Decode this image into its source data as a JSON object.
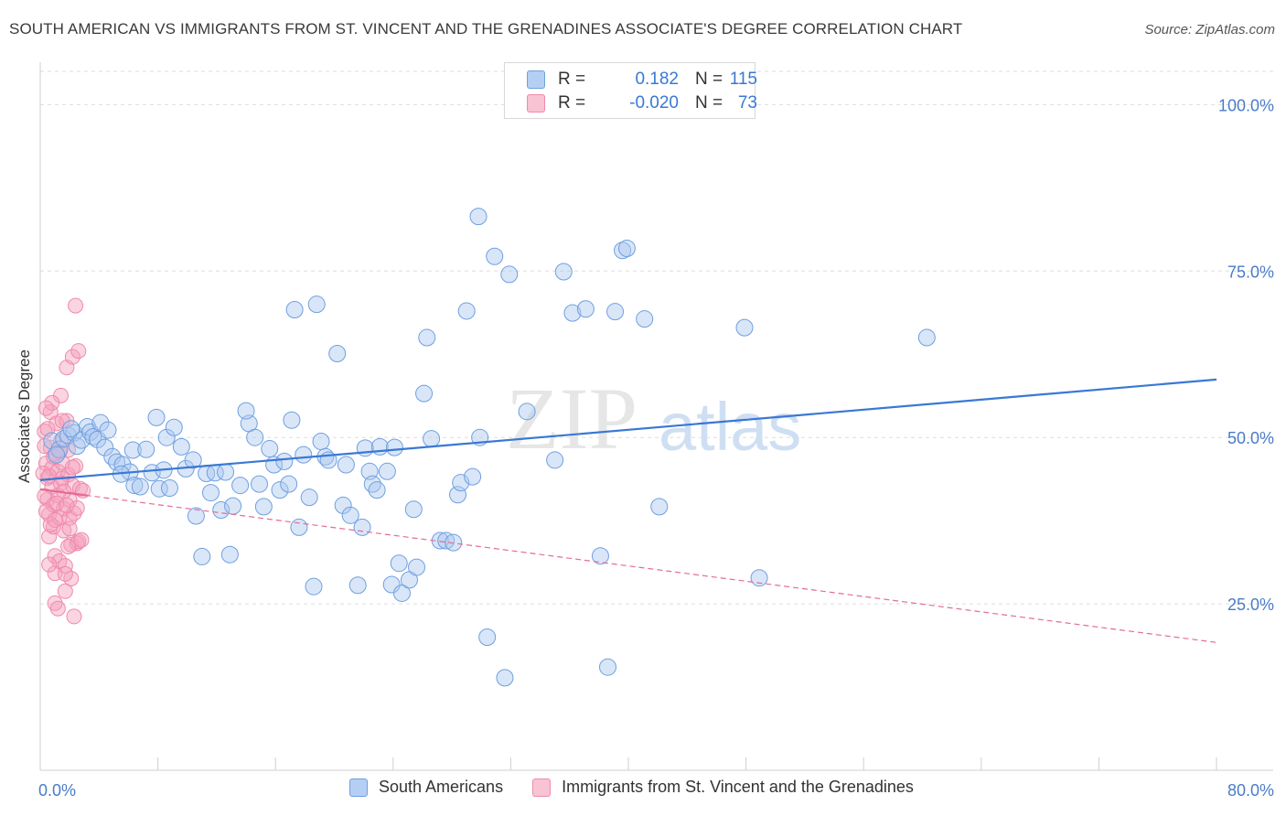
{
  "header": {
    "title": "SOUTH AMERICAN VS IMMIGRANTS FROM ST. VINCENT AND THE GRENADINES ASSOCIATE'S DEGREE CORRELATION CHART",
    "source": "Source: ZipAtlas.com"
  },
  "watermark": {
    "zip": "ZIP",
    "atlas": "atlas"
  },
  "stats": [
    {
      "r_label": "R =",
      "r_value": "0.182",
      "n_label": "N =",
      "n_value": "115",
      "color": "#6f9fe0"
    },
    {
      "r_label": "R =",
      "r_value": "-0.020",
      "n_label": "N =",
      "n_value": "73",
      "color": "#f08aaa"
    }
  ],
  "legend": [
    {
      "label": "South Americans",
      "fill": "#b4cff3",
      "stroke": "#6f9fe0"
    },
    {
      "label": "Immigrants from St. Vincent and the Grenadines",
      "fill": "#f8c3d3",
      "stroke": "#f08aaa"
    }
  ],
  "colors": {
    "blue": "#5b8fdb",
    "blue_line": "#3a78d4",
    "pink": "#f08aaa",
    "pink_line": "#e56b93",
    "tick_label": "#4a7cc7",
    "grid": "#dddddd"
  },
  "chart_data": {
    "type": "scatter",
    "title": "SOUTH AMERICAN VS IMMIGRANTS FROM ST. VINCENT AND THE GRENADINES ASSOCIATE'S DEGREE CORRELATION CHART",
    "xlabel": "",
    "ylabel": "Associate's Degree",
    "xlim": [
      0,
      80
    ],
    "ylim": [
      0,
      105
    ],
    "x_tick_labels": [
      {
        "value": 0,
        "label": "0.0%"
      },
      {
        "value": 80,
        "label": "80.0%"
      }
    ],
    "y_tick_labels": [
      {
        "value": 25,
        "label": "25.0%"
      },
      {
        "value": 50,
        "label": "50.0%"
      },
      {
        "value": 75,
        "label": "75.0%"
      },
      {
        "value": 100,
        "label": "100.0%"
      }
    ],
    "x_minor_ticks": [
      0,
      8,
      16,
      24,
      32,
      40,
      48,
      56,
      64,
      72,
      80
    ],
    "grid": true,
    "series": [
      {
        "name": "South Americans",
        "color": "#6f9fe0",
        "trend": {
          "x": [
            0,
            80
          ],
          "y": [
            43.6,
            58.7
          ]
        },
        "points": [
          [
            0.8,
            49.5
          ],
          [
            1.3,
            48.2
          ],
          [
            1.6,
            49.8
          ],
          [
            1.9,
            50.3
          ],
          [
            2.3,
            50.7
          ],
          [
            2.5,
            48.7
          ],
          [
            2.8,
            49.6
          ],
          [
            3.2,
            51.6
          ],
          [
            3.4,
            50.8
          ],
          [
            3.6,
            50.1
          ],
          [
            3.9,
            49.7
          ],
          [
            4.1,
            52.2
          ],
          [
            4.4,
            48.5
          ],
          [
            4.6,
            51.1
          ],
          [
            4.9,
            47.1
          ],
          [
            5.2,
            46.3
          ],
          [
            5.6,
            45.9
          ],
          [
            6.1,
            44.8
          ],
          [
            6.3,
            48.1
          ],
          [
            6.4,
            42.8
          ],
          [
            6.8,
            42.6
          ],
          [
            7.2,
            48.2
          ],
          [
            7.6,
            44.7
          ],
          [
            7.9,
            53.0
          ],
          [
            8.1,
            42.3
          ],
          [
            8.6,
            50.0
          ],
          [
            8.8,
            42.4
          ],
          [
            9.1,
            51.5
          ],
          [
            9.6,
            48.6
          ],
          [
            9.9,
            45.3
          ],
          [
            10.4,
            46.6
          ],
          [
            10.6,
            38.2
          ],
          [
            11.0,
            32.1
          ],
          [
            11.3,
            44.6
          ],
          [
            11.6,
            41.7
          ],
          [
            11.9,
            44.7
          ],
          [
            12.3,
            39.1
          ],
          [
            12.6,
            44.8
          ],
          [
            12.9,
            32.4
          ],
          [
            13.1,
            39.7
          ],
          [
            13.6,
            42.8
          ],
          [
            14.2,
            52.1
          ],
          [
            14.6,
            50.0
          ],
          [
            14.9,
            43.0
          ],
          [
            15.2,
            39.6
          ],
          [
            15.6,
            48.3
          ],
          [
            15.9,
            45.9
          ],
          [
            16.3,
            42.1
          ],
          [
            16.6,
            46.4
          ],
          [
            16.9,
            43.0
          ],
          [
            17.1,
            52.6
          ],
          [
            17.6,
            36.5
          ],
          [
            17.9,
            47.4
          ],
          [
            18.3,
            41.0
          ],
          [
            18.6,
            27.6
          ],
          [
            19.1,
            49.4
          ],
          [
            19.4,
            47.1
          ],
          [
            19.6,
            46.6
          ],
          [
            20.2,
            62.6
          ],
          [
            20.6,
            39.8
          ],
          [
            20.8,
            45.9
          ],
          [
            21.1,
            38.3
          ],
          [
            21.6,
            27.8
          ],
          [
            21.9,
            36.5
          ],
          [
            22.1,
            48.4
          ],
          [
            22.4,
            44.9
          ],
          [
            22.6,
            43.0
          ],
          [
            23.1,
            48.6
          ],
          [
            23.6,
            44.9
          ],
          [
            23.9,
            27.9
          ],
          [
            24.1,
            48.5
          ],
          [
            24.4,
            31.1
          ],
          [
            24.6,
            26.6
          ],
          [
            25.1,
            28.6
          ],
          [
            25.4,
            39.2
          ],
          [
            25.6,
            30.5
          ],
          [
            26.1,
            56.6
          ],
          [
            26.3,
            65.0
          ],
          [
            26.6,
            49.8
          ],
          [
            27.2,
            34.5
          ],
          [
            27.6,
            34.5
          ],
          [
            28.1,
            34.2
          ],
          [
            28.4,
            41.4
          ],
          [
            28.6,
            43.2
          ],
          [
            29.0,
            69.0
          ],
          [
            29.4,
            44.1
          ],
          [
            29.9,
            50.0
          ],
          [
            30.4,
            20.0
          ],
          [
            30.9,
            77.2
          ],
          [
            31.6,
            13.9
          ],
          [
            31.9,
            74.5
          ],
          [
            33.1,
            53.9
          ],
          [
            35.0,
            46.6
          ],
          [
            35.6,
            74.9
          ],
          [
            36.2,
            68.7
          ],
          [
            37.1,
            69.3
          ],
          [
            38.1,
            32.2
          ],
          [
            39.1,
            68.9
          ],
          [
            38.6,
            15.5
          ],
          [
            39.6,
            78.1
          ],
          [
            39.9,
            78.4
          ],
          [
            41.1,
            67.8
          ],
          [
            42.1,
            39.6
          ],
          [
            47.9,
            66.5
          ],
          [
            48.9,
            28.9
          ],
          [
            60.3,
            65.0
          ],
          [
            17.3,
            69.2
          ],
          [
            18.8,
            70.0
          ],
          [
            29.8,
            83.2
          ],
          [
            1.1,
            47.4
          ],
          [
            5.5,
            44.5
          ],
          [
            14.0,
            54.0
          ],
          [
            8.4,
            45.1
          ],
          [
            22.9,
            42.1
          ],
          [
            2.1,
            51.3
          ]
        ]
      },
      {
        "name": "Immigrants from St. Vincent and the Grenadines",
        "color": "#f08aaa",
        "trend": {
          "x": [
            0,
            80
          ],
          "y": [
            42.2,
            19.2
          ]
        },
        "points": [
          [
            0.3,
            50.9
          ],
          [
            0.4,
            46.1
          ],
          [
            0.5,
            43.9
          ],
          [
            0.5,
            40.7
          ],
          [
            0.6,
            38.4
          ],
          [
            0.6,
            35.1
          ],
          [
            0.7,
            53.8
          ],
          [
            0.7,
            48.5
          ],
          [
            0.8,
            45.4
          ],
          [
            0.8,
            42.6
          ],
          [
            0.9,
            39.9
          ],
          [
            0.9,
            36.6
          ],
          [
            1.0,
            32.2
          ],
          [
            1.0,
            29.6
          ],
          [
            1.1,
            52.1
          ],
          [
            1.1,
            47.6
          ],
          [
            1.2,
            44.9
          ],
          [
            1.2,
            41.3
          ],
          [
            1.3,
            37.9
          ],
          [
            1.3,
            31.4
          ],
          [
            1.4,
            56.3
          ],
          [
            1.4,
            49.5
          ],
          [
            1.5,
            46.2
          ],
          [
            1.5,
            43.8
          ],
          [
            1.6,
            39.3
          ],
          [
            1.6,
            36.0
          ],
          [
            1.7,
            30.7
          ],
          [
            1.7,
            26.9
          ],
          [
            1.8,
            60.5
          ],
          [
            1.8,
            52.5
          ],
          [
            1.9,
            48.1
          ],
          [
            1.9,
            44.4
          ],
          [
            2.0,
            40.6
          ],
          [
            2.0,
            37.9
          ],
          [
            2.1,
            33.9
          ],
          [
            2.1,
            28.8
          ],
          [
            2.2,
            62.1
          ],
          [
            2.2,
            42.8
          ],
          [
            2.3,
            38.6
          ],
          [
            2.3,
            23.1
          ],
          [
            2.4,
            69.8
          ],
          [
            2.4,
            45.7
          ],
          [
            2.5,
            39.4
          ],
          [
            2.5,
            34.1
          ],
          [
            2.6,
            63.0
          ],
          [
            2.6,
            34.4
          ],
          [
            2.7,
            42.3
          ],
          [
            2.8,
            34.6
          ],
          [
            0.2,
            44.6
          ],
          [
            0.3,
            41.2
          ],
          [
            0.4,
            38.9
          ],
          [
            0.6,
            44.2
          ],
          [
            0.7,
            36.9
          ],
          [
            0.9,
            47.1
          ],
          [
            1.0,
            25.1
          ],
          [
            1.2,
            24.3
          ],
          [
            1.3,
            47.8
          ],
          [
            1.5,
            52.5
          ],
          [
            1.7,
            29.5
          ],
          [
            1.9,
            33.6
          ],
          [
            0.5,
            51.3
          ],
          [
            0.8,
            55.2
          ],
          [
            1.1,
            40.1
          ],
          [
            1.4,
            43.1
          ],
          [
            0.3,
            48.7
          ],
          [
            0.6,
            30.9
          ],
          [
            1.0,
            37.6
          ],
          [
            2.0,
            36.3
          ],
          [
            1.6,
            41.9
          ],
          [
            2.9,
            42.0
          ],
          [
            0.4,
            54.4
          ],
          [
            1.8,
            39.8
          ],
          [
            2.2,
            45.5
          ]
        ]
      }
    ]
  }
}
